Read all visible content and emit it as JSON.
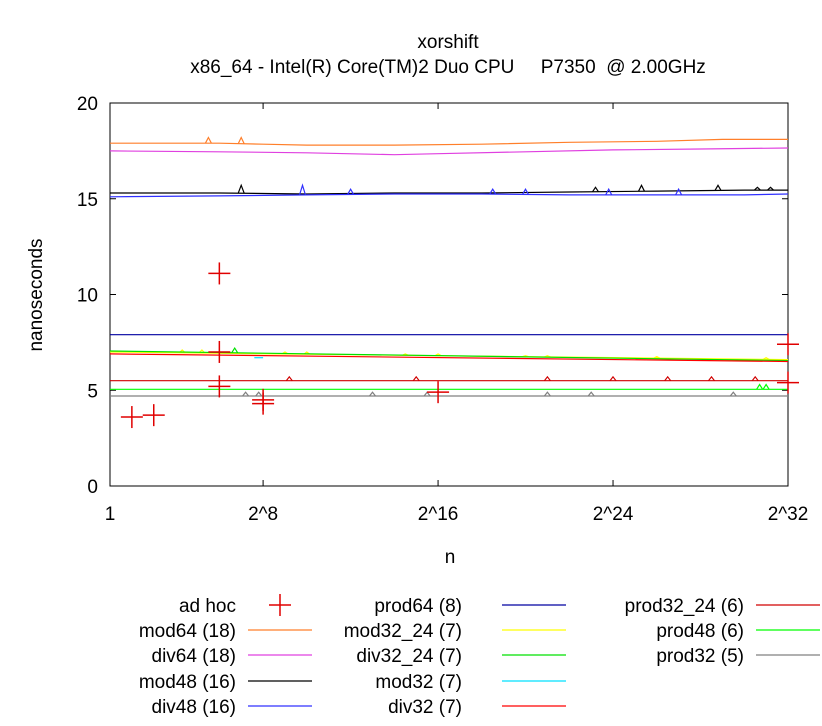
{
  "chart_data": {
    "type": "line",
    "title": "xorshift",
    "subtitle": "x86_64 - Intel(R) Core(TM)2 Duo CPU     P7350  @ 2.00GHz",
    "xlabel": "n",
    "ylabel": "nanoseconds",
    "xlim": [
      1,
      32
    ],
    "ylim": [
      0,
      20
    ],
    "x_ticks": [
      {
        "value": 1,
        "label": "1"
      },
      {
        "value": 8,
        "label": "2^8"
      },
      {
        "value": 16,
        "label": "2^16"
      },
      {
        "value": 24,
        "label": "2^24"
      },
      {
        "value": 32,
        "label": "2^32"
      }
    ],
    "y_ticks": [
      {
        "value": 0,
        "label": "0"
      },
      {
        "value": 5,
        "label": "5"
      },
      {
        "value": 10,
        "label": "10"
      },
      {
        "value": 15,
        "label": "15"
      },
      {
        "value": 20,
        "label": "20"
      }
    ],
    "series": [
      {
        "name": "mod64 (18)",
        "color": "#ff7f2a",
        "x": [
          1,
          6,
          8,
          10,
          14,
          18,
          22,
          26,
          29,
          32
        ],
        "y": [
          17.9,
          17.9,
          17.85,
          17.8,
          17.8,
          17.85,
          17.95,
          18.0,
          18.1,
          18.1
        ],
        "spikes": [
          {
            "x": 5.5,
            "y": 18.2
          },
          {
            "x": 7.0,
            "y": 18.2
          }
        ]
      },
      {
        "name": "div64 (18)",
        "color": "#e040e0",
        "x": [
          1,
          6,
          10,
          14,
          16,
          20,
          24,
          28,
          32
        ],
        "y": [
          17.5,
          17.45,
          17.4,
          17.3,
          17.35,
          17.45,
          17.55,
          17.6,
          17.65
        ]
      },
      {
        "name": "mod48 (16)",
        "color": "#000000",
        "x": [
          1,
          6,
          10,
          14,
          18,
          22,
          26,
          30,
          32
        ],
        "y": [
          15.3,
          15.3,
          15.25,
          15.3,
          15.3,
          15.35,
          15.4,
          15.45,
          15.45
        ],
        "spikes": [
          {
            "x": 7.0,
            "y": 15.7
          },
          {
            "x": 23.2,
            "y": 15.6
          },
          {
            "x": 25.3,
            "y": 15.7
          },
          {
            "x": 28.8,
            "y": 15.7
          },
          {
            "x": 30.6,
            "y": 15.6
          },
          {
            "x": 31.2,
            "y": 15.6
          }
        ]
      },
      {
        "name": "div48 (16)",
        "color": "#3030ff",
        "x": [
          1,
          6,
          10,
          14,
          18,
          22,
          26,
          30,
          32
        ],
        "y": [
          15.1,
          15.15,
          15.2,
          15.25,
          15.25,
          15.2,
          15.2,
          15.2,
          15.25
        ],
        "spikes": [
          {
            "x": 9.8,
            "y": 15.7
          },
          {
            "x": 12.0,
            "y": 15.5
          },
          {
            "x": 18.5,
            "y": 15.5
          },
          {
            "x": 20.0,
            "y": 15.5
          },
          {
            "x": 23.8,
            "y": 15.5
          },
          {
            "x": 27.0,
            "y": 15.5
          }
        ]
      },
      {
        "name": "prod64 (8)",
        "color": "#0000a0",
        "x": [
          1,
          32
        ],
        "y": [
          7.9,
          7.9
        ]
      },
      {
        "name": "mod32_24 (7)",
        "color": "#ffff00",
        "x": [
          1,
          32
        ],
        "y": [
          7.0,
          6.6
        ],
        "spikes": [
          {
            "x": 4.3,
            "y": 7.1
          },
          {
            "x": 5.2,
            "y": 7.1
          },
          {
            "x": 9.0,
            "y": 7.0
          },
          {
            "x": 10.0,
            "y": 7.0
          },
          {
            "x": 14.5,
            "y": 6.9
          },
          {
            "x": 16.0,
            "y": 6.9
          },
          {
            "x": 20.0,
            "y": 6.8
          },
          {
            "x": 21.0,
            "y": 6.8
          },
          {
            "x": 26.0,
            "y": 6.75
          },
          {
            "x": 31.0,
            "y": 6.7
          }
        ]
      },
      {
        "name": "div32_24 (7)",
        "color": "#00e000",
        "x": [
          1,
          32
        ],
        "y": [
          7.05,
          6.55
        ],
        "spikes": [
          {
            "x": 6.7,
            "y": 7.2
          }
        ]
      },
      {
        "name": "mod32 (7)",
        "color": "#00e0ff",
        "x": [
          7.6,
          8.0
        ],
        "y": [
          6.7,
          6.7
        ]
      },
      {
        "name": "div32 (7)",
        "color": "#ff0000",
        "x": [
          1,
          32
        ],
        "y": [
          6.9,
          6.5
        ]
      },
      {
        "name": "prod32_24 (6)",
        "color": "#d00000",
        "x": [
          1,
          32
        ],
        "y": [
          5.5,
          5.5
        ],
        "spikes": [
          {
            "x": 9.2,
            "y": 5.7
          },
          {
            "x": 15.0,
            "y": 5.7
          },
          {
            "x": 21.0,
            "y": 5.7
          },
          {
            "x": 24.0,
            "y": 5.7
          },
          {
            "x": 26.5,
            "y": 5.7
          },
          {
            "x": 28.5,
            "y": 5.7
          },
          {
            "x": 30.5,
            "y": 5.7
          }
        ]
      },
      {
        "name": "prod48 (6)",
        "color": "#00ff00",
        "x": [
          1,
          32
        ],
        "y": [
          5.05,
          5.05
        ],
        "spikes": [
          {
            "x": 30.7,
            "y": 5.3
          },
          {
            "x": 31.0,
            "y": 5.3
          }
        ]
      },
      {
        "name": "prod32 (5)",
        "color": "#808080",
        "x": [
          1,
          32
        ],
        "y": [
          4.7,
          4.7
        ],
        "spikes": [
          {
            "x": 7.2,
            "y": 4.9
          },
          {
            "x": 7.8,
            "y": 4.9
          },
          {
            "x": 13.0,
            "y": 4.9
          },
          {
            "x": 15.5,
            "y": 4.9
          },
          {
            "x": 21.0,
            "y": 4.9
          },
          {
            "x": 23.0,
            "y": 4.9
          },
          {
            "x": 29.5,
            "y": 4.9
          }
        ]
      }
    ],
    "adhoc": {
      "name": "ad hoc",
      "color": "#e00000",
      "points": [
        {
          "x": 2.0,
          "y": 3.6
        },
        {
          "x": 3.0,
          "y": 3.7
        },
        {
          "x": 6.0,
          "y": 11.1
        },
        {
          "x": 6.0,
          "y": 7.0
        },
        {
          "x": 6.0,
          "y": 5.2
        },
        {
          "x": 8.0,
          "y": 4.5
        },
        {
          "x": 8.0,
          "y": 4.3
        },
        {
          "x": 16.0,
          "y": 4.9
        },
        {
          "x": 32.0,
          "y": 7.4
        },
        {
          "x": 32.0,
          "y": 5.4
        }
      ]
    },
    "legend": {
      "placement": "bottom",
      "columns": [
        [
          "ad hoc",
          "mod64 (18)",
          "div64 (18)",
          "mod48 (16)",
          "div48 (16)"
        ],
        [
          "prod64 (8)",
          "mod32_24 (7)",
          "div32_24 (7)",
          "mod32 (7)",
          "div32 (7)"
        ],
        [
          "prod32_24 (6)",
          "prod48 (6)",
          "prod32 (5)"
        ]
      ]
    }
  }
}
